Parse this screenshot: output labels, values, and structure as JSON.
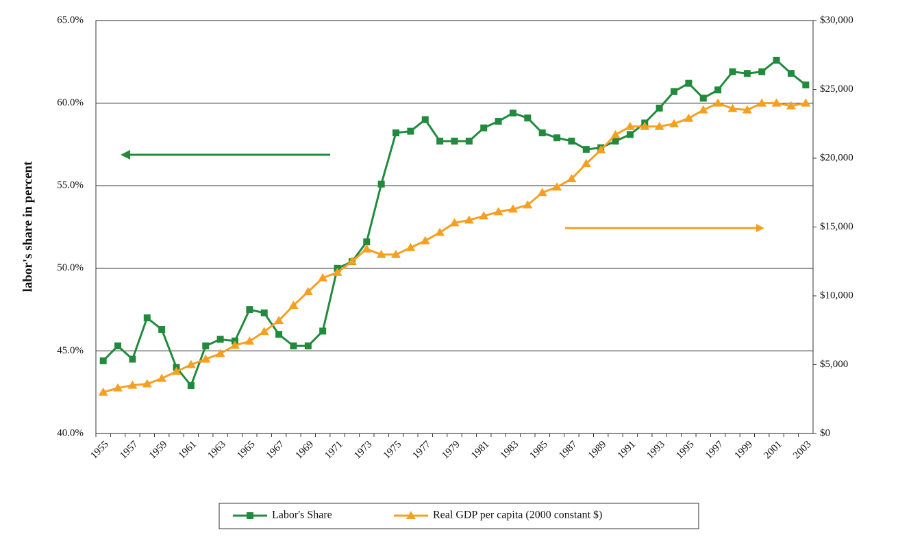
{
  "chart_data": {
    "type": "line",
    "y_label": "labor's share in percent",
    "categories": [
      "1955",
      null,
      "1957",
      null,
      "1959",
      null,
      "1961",
      null,
      "1963",
      null,
      "1965",
      null,
      "1967",
      null,
      "1969",
      null,
      "1971",
      null,
      "1973",
      null,
      "1975",
      null,
      "1977",
      null,
      "1979",
      null,
      "1981",
      null,
      "1983",
      null,
      "1985",
      null,
      "1987",
      null,
      "1989",
      null,
      "1991",
      null,
      "1993",
      null,
      "1995",
      null,
      "1997",
      null,
      "1999",
      null,
      "2001",
      null,
      "2003"
    ],
    "series": [
      {
        "name": "Labor's Share",
        "color": "#218a3c",
        "marker": "square",
        "values": [
          44.4,
          45.3,
          44.5,
          47.0,
          46.3,
          44.0,
          42.9,
          45.3,
          45.7,
          45.6,
          47.5,
          47.3,
          46.0,
          45.3,
          45.3,
          46.2,
          50.0,
          50.4,
          51.6,
          55.1,
          58.2,
          58.3,
          59.0,
          57.7,
          57.7,
          57.7,
          58.5,
          58.9,
          59.4,
          59.1,
          58.2,
          57.9,
          57.7,
          57.2,
          57.3,
          57.7,
          58.1,
          58.8,
          59.7,
          60.7,
          61.2,
          60.3,
          60.8,
          61.9,
          61.8,
          61.9,
          62.6,
          61.8,
          61.1
        ]
      },
      {
        "name": "Real GDP per capita (2000 constant $)",
        "color": "#f5a020",
        "marker": "triangle",
        "axis": "y2",
        "values": [
          3000,
          3300,
          3500,
          3600,
          4000,
          4500,
          5000,
          5400,
          5800,
          6400,
          6700,
          7400,
          8200,
          9300,
          10300,
          11300,
          11700,
          12500,
          13400,
          13000,
          13000,
          13500,
          14000,
          14600,
          15300,
          15500,
          15800,
          16100,
          16300,
          16600,
          17500,
          17900,
          18500,
          19600,
          20600,
          21700,
          22300,
          22300,
          22300,
          22500,
          22900,
          23500,
          24000,
          23600,
          23500,
          24000,
          24000,
          23800,
          24000
        ]
      }
    ],
    "ylim": [
      40,
      65
    ],
    "yticks": [
      {
        "value": 40,
        "label": "40.0%"
      },
      {
        "value": 45,
        "label": "45.0%"
      },
      {
        "value": 50,
        "label": "50.0%"
      },
      {
        "value": 55,
        "label": "55.0%"
      },
      {
        "value": 60,
        "label": "60.0%"
      },
      {
        "value": 65,
        "label": "65.0%"
      }
    ],
    "y2lim": [
      0,
      30000
    ],
    "y2ticks": [
      {
        "value": 0,
        "label": "$0"
      },
      {
        "value": 5000,
        "label": "$5,000"
      },
      {
        "value": 10000,
        "label": "$10,000"
      },
      {
        "value": 15000,
        "label": "$15,000"
      },
      {
        "value": 20000,
        "label": "$20,000"
      },
      {
        "value": 25000,
        "label": "$25,000"
      },
      {
        "value": 30000,
        "label": "$30,000"
      }
    ],
    "grid": true
  }
}
